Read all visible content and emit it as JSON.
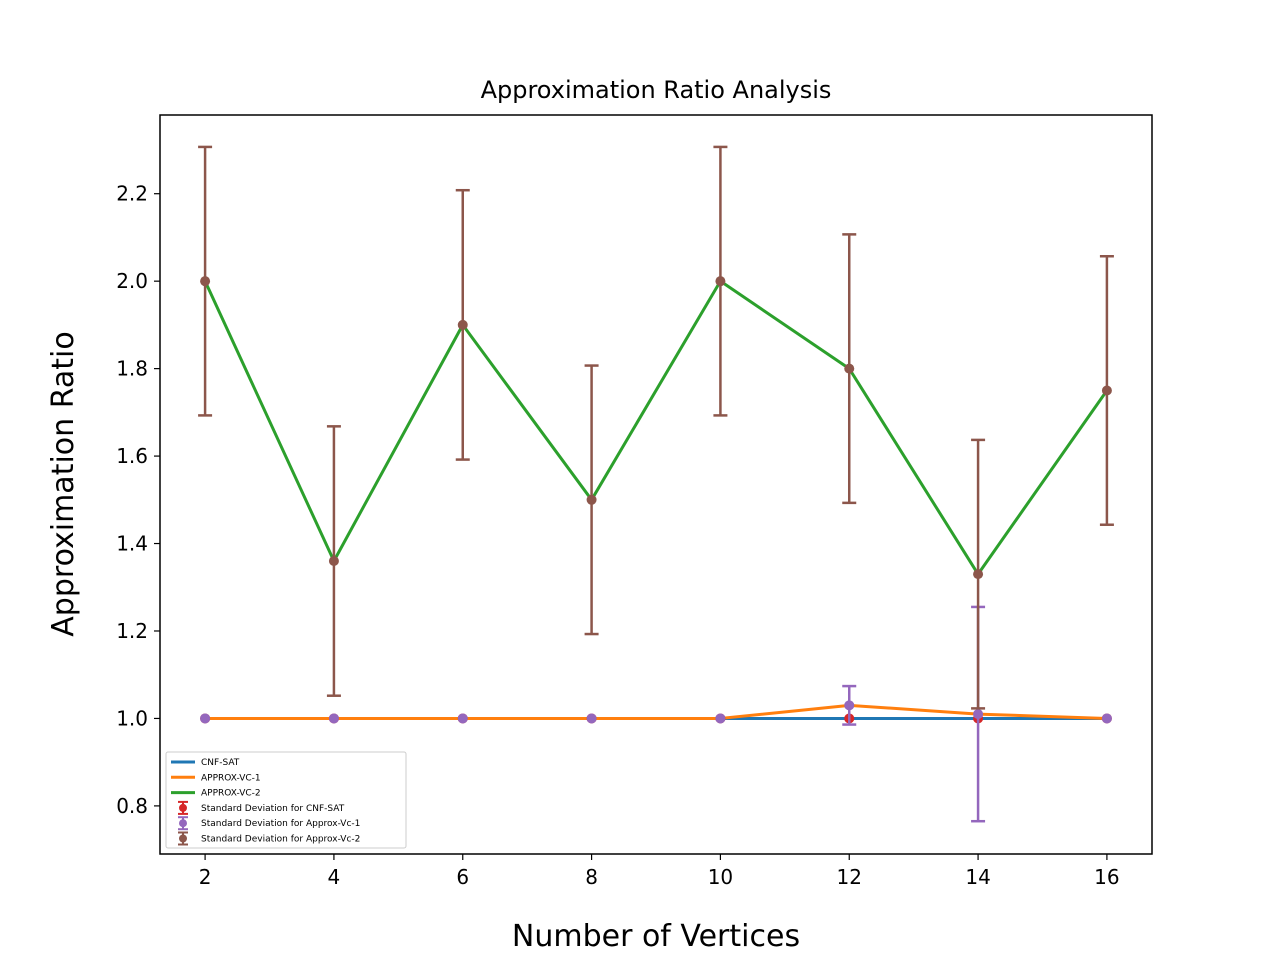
{
  "chart_data": {
    "type": "line",
    "title": "Approximation Ratio Analysis",
    "xlabel": "Number of Vertices",
    "ylabel": "Approximation Ratio",
    "x": [
      2,
      4,
      6,
      8,
      10,
      12,
      14,
      16
    ],
    "xlim": [
      1.3,
      16.7
    ],
    "ylim": [
      0.69,
      2.38
    ],
    "xticks": [
      2,
      4,
      6,
      8,
      10,
      12,
      14,
      16
    ],
    "yticks": [
      0.8,
      1.0,
      1.2,
      1.4,
      1.6,
      1.8,
      2.0,
      2.2
    ],
    "ytick_labels": [
      "0.8",
      "1.0",
      "1.2",
      "1.4",
      "1.6",
      "1.8",
      "2.0",
      "2.2"
    ],
    "grid": false,
    "legend_position": "lower-left",
    "series": [
      {
        "name": "CNF-SAT",
        "kind": "line",
        "color": "#1f77b4",
        "values": [
          1.0,
          1.0,
          1.0,
          1.0,
          1.0,
          1.0,
          1.0,
          1.0
        ]
      },
      {
        "name": "APPROX-VC-1",
        "kind": "line",
        "color": "#ff7f0e",
        "values": [
          1.0,
          1.0,
          1.0,
          1.0,
          1.0,
          1.03,
          1.01,
          1.0
        ]
      },
      {
        "name": "APPROX-VC-2",
        "kind": "line",
        "color": "#2ca02c",
        "values": [
          2.0,
          1.36,
          1.9,
          1.5,
          2.0,
          1.8,
          1.33,
          1.75
        ]
      }
    ],
    "errorbars": [
      {
        "name": "Standard Deviation for CNF-SAT",
        "color": "#d62728",
        "values": [
          1.0,
          1.0,
          1.0,
          1.0,
          1.0,
          1.0,
          1.0,
          1.0
        ],
        "errors": [
          0,
          0,
          0,
          0,
          0,
          0,
          0,
          0
        ]
      },
      {
        "name": "Standard Deviation for Approx-Vc-1",
        "color": "#9467bd",
        "values": [
          1.0,
          1.0,
          1.0,
          1.0,
          1.0,
          1.03,
          1.01,
          1.0
        ],
        "errors": [
          0,
          0,
          0,
          0,
          0,
          0.044,
          0.245,
          0
        ]
      },
      {
        "name": "Standard Deviation for Approx-Vc-2",
        "color": "#8c564b",
        "values": [
          2.0,
          1.36,
          1.9,
          1.5,
          2.0,
          1.8,
          1.33,
          1.75
        ],
        "errors": [
          0.307,
          0.308,
          0.308,
          0.307,
          0.307,
          0.307,
          0.307,
          0.307
        ]
      }
    ]
  }
}
